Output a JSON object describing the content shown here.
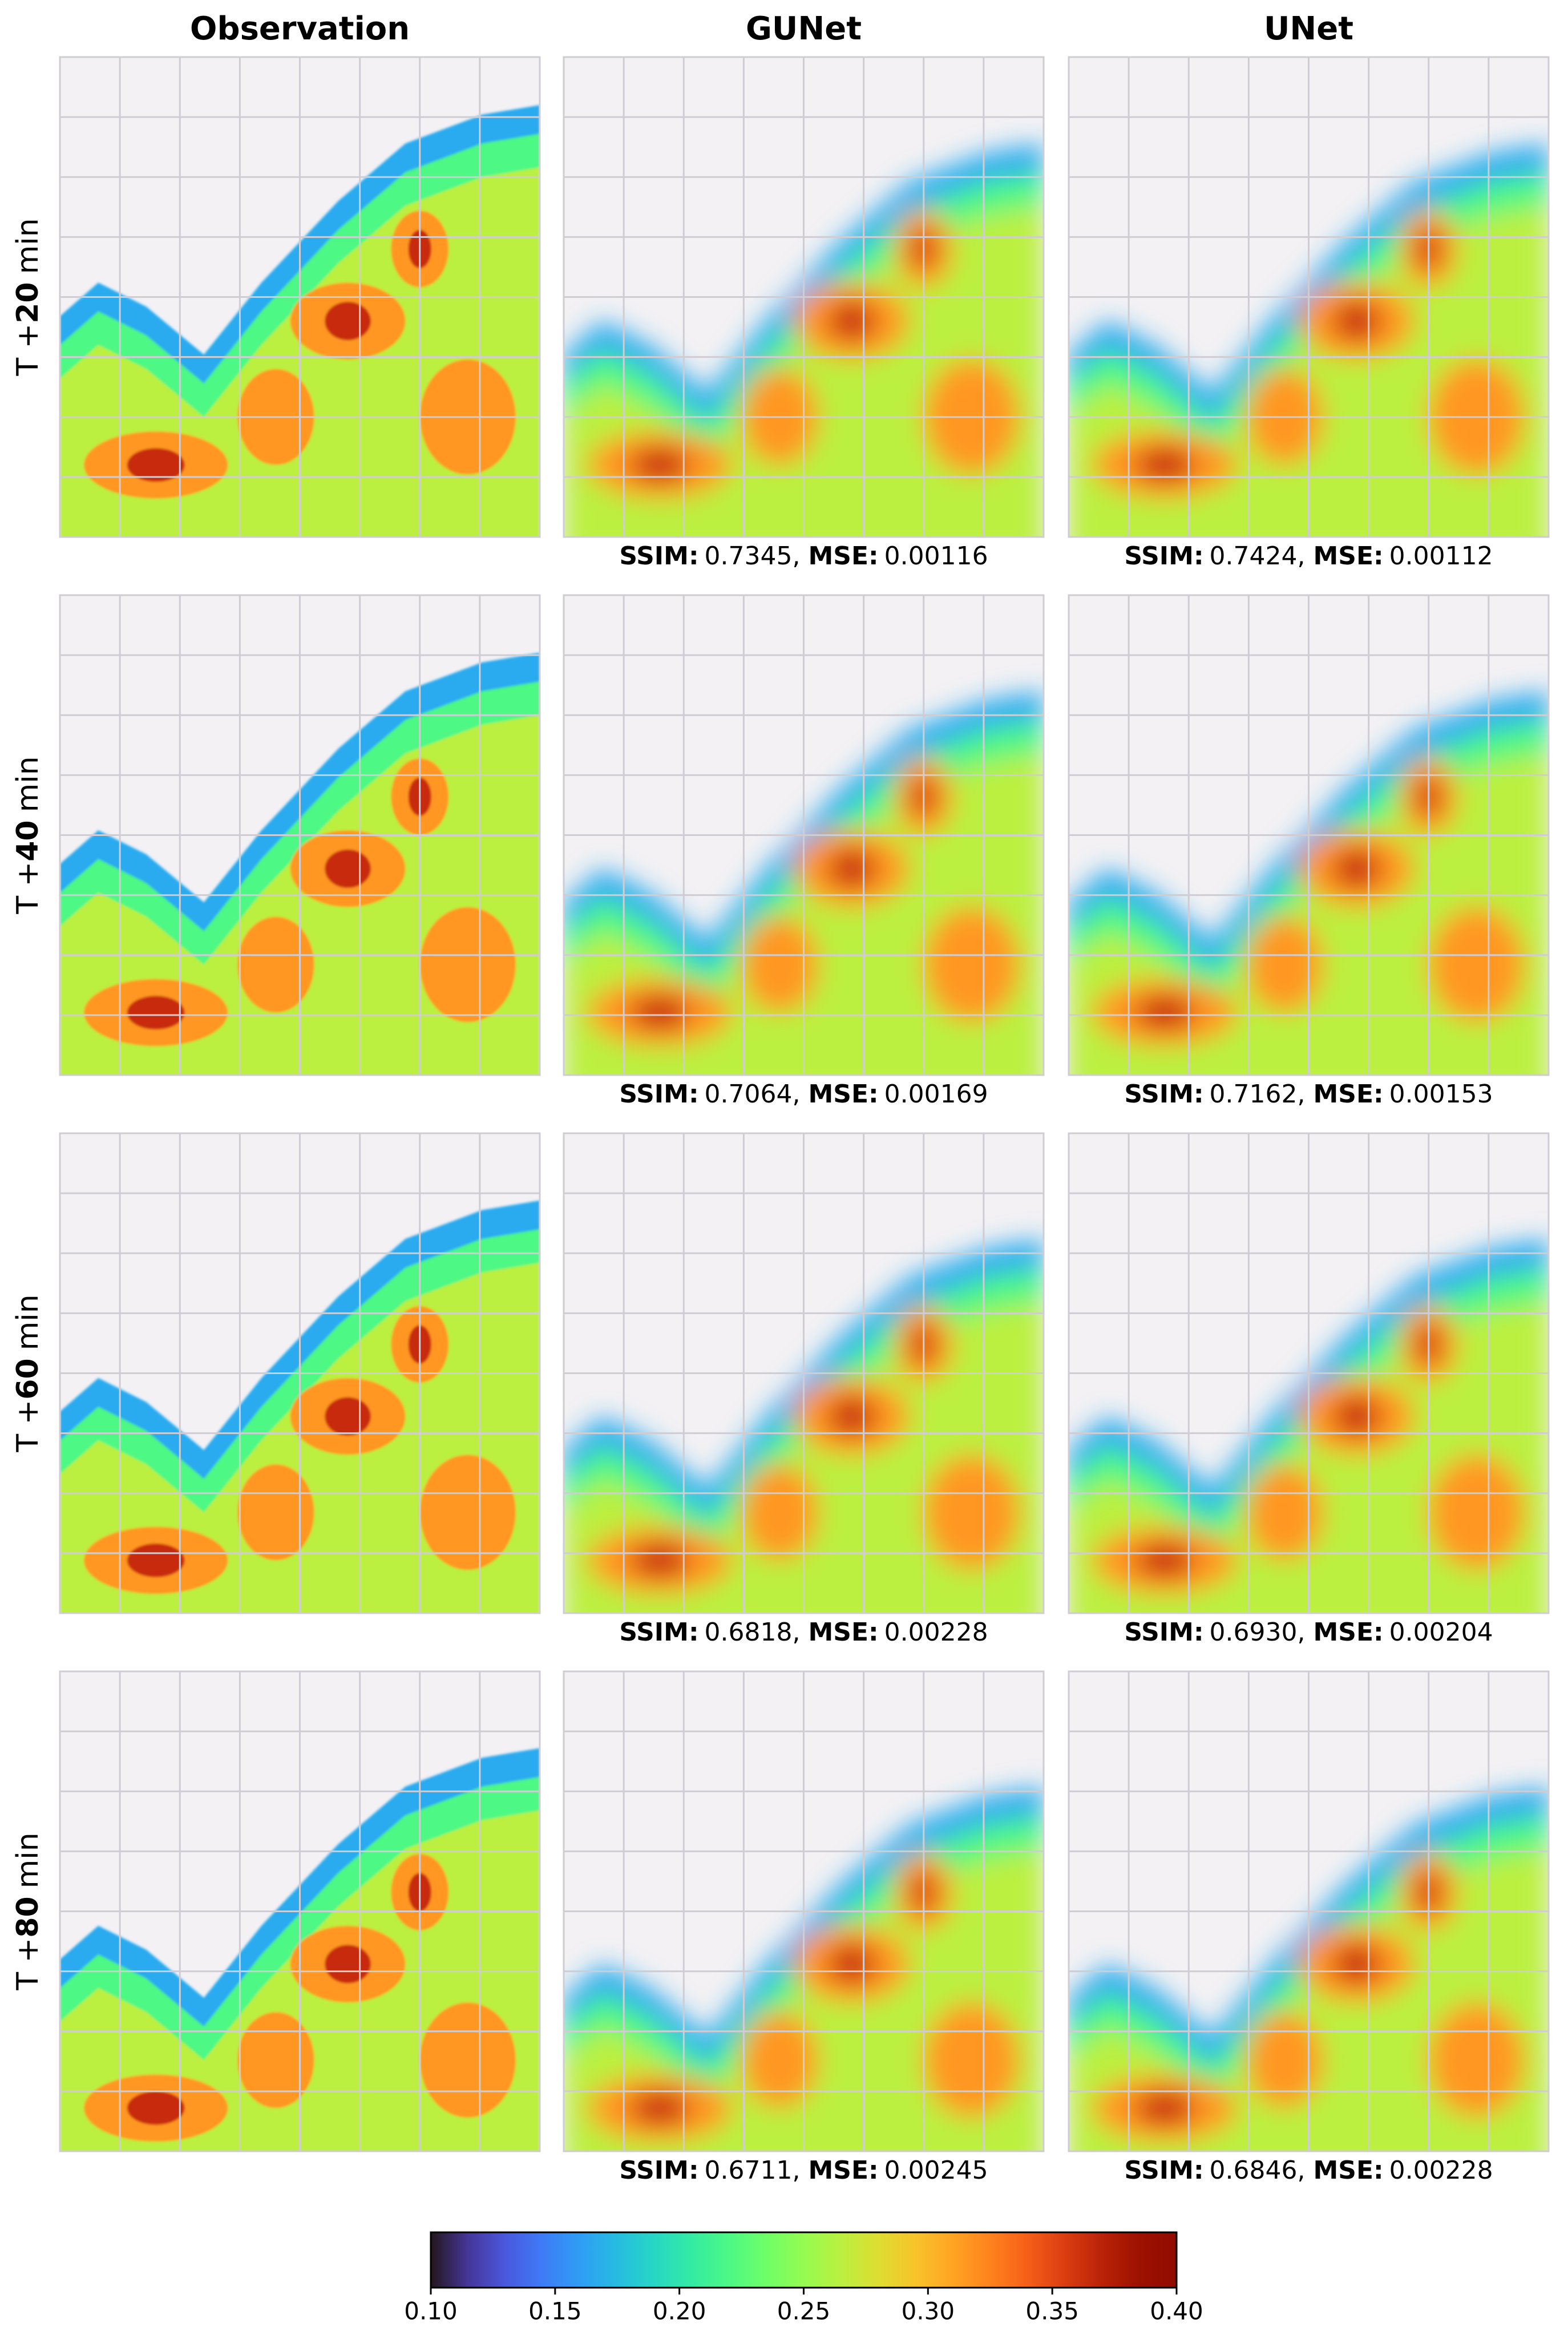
{
  "chart_data": {
    "type": "image-grid",
    "columns": [
      "Observation",
      "GUNet",
      "UNet"
    ],
    "metric_names": [
      "SSIM:",
      "MSE:"
    ],
    "separator": ",",
    "rows": [
      {
        "prefix": "T +",
        "lead": 20,
        "unit": "min",
        "metrics": [
          {
            "ssim": 0.7345,
            "mse": 0.00116
          },
          {
            "ssim": 0.7424,
            "mse": 0.00112
          }
        ]
      },
      {
        "prefix": "T +",
        "lead": 40,
        "unit": "min",
        "metrics": [
          {
            "ssim": 0.7064,
            "mse": 0.00169
          },
          {
            "ssim": 0.7162,
            "mse": 0.00153
          }
        ]
      },
      {
        "prefix": "T +",
        "lead": 60,
        "unit": "min",
        "metrics": [
          {
            "ssim": 0.6818,
            "mse": 0.00228
          },
          {
            "ssim": {
              "value": 0.693,
              "label": "0.6930"
            },
            "mse": 0.00204
          }
        ]
      },
      {
        "prefix": "T +",
        "lead": 80,
        "unit": "min",
        "metrics": [
          {
            "ssim": 0.6711,
            "mse": 0.00245
          },
          {
            "ssim": 0.6846,
            "mse": 0.00228
          }
        ]
      }
    ],
    "colorbar": {
      "colormap": "turbo",
      "lim": [
        0.1,
        0.4
      ],
      "ticks": [
        {
          "value": 0.1,
          "label": "0.10"
        },
        {
          "value": 0.15,
          "label": "0.15"
        },
        {
          "value": 0.2,
          "label": "0.20"
        },
        {
          "value": 0.25,
          "label": "0.25"
        },
        {
          "value": 0.3,
          "label": "0.30"
        },
        {
          "value": 0.35,
          "label": "0.35"
        },
        {
          "value": 0.4,
          "label": "0.40"
        }
      ]
    }
  }
}
